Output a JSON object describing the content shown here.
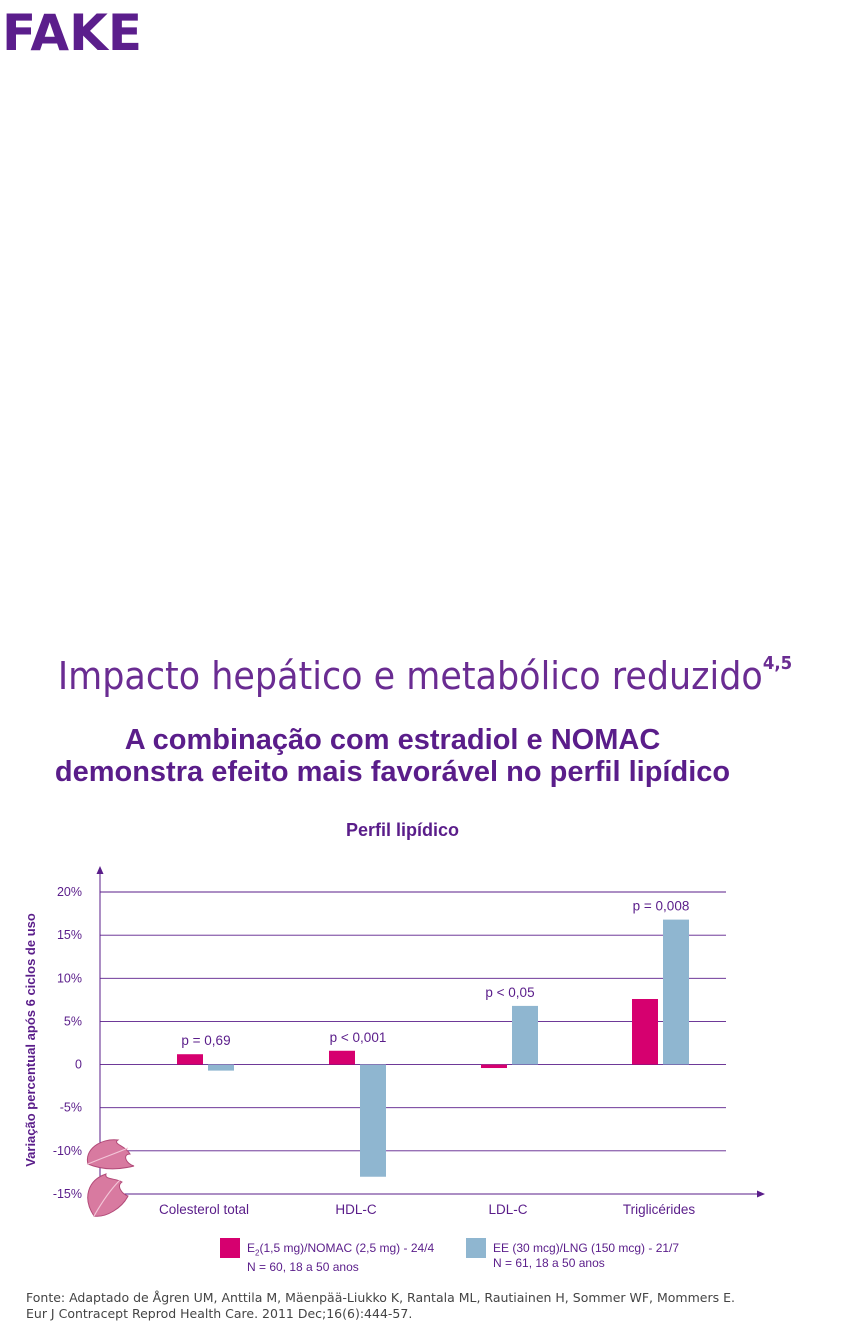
{
  "brand": {
    "logo_text": "FAKE"
  },
  "headline": {
    "text": "Impacto hepático e metabólico reduzido",
    "superscript": "4,5"
  },
  "subhead": {
    "line1": "A combinação com estradiol e NOMAC",
    "line2": "demonstra efeito mais favorável no perfil lipídico"
  },
  "colors": {
    "purple": "#5a1d8a",
    "series1": "#d6006f",
    "series2": "#8fb6d0",
    "grid": "#5a1d8a"
  },
  "chart_data": {
    "type": "bar",
    "title": "Perfil lipídico",
    "ylabel": "Variação percentual após 6 ciclos de uso",
    "xlabel": "",
    "ylim": [
      -15,
      20
    ],
    "yticks": [
      20,
      15,
      10,
      5,
      0,
      -5,
      -10,
      -15
    ],
    "ytick_labels": [
      "20%",
      "15%",
      "10%",
      "5%",
      "0",
      "-5%",
      "-10%",
      "-15%"
    ],
    "categories": [
      "Colesterol total",
      "HDL-C",
      "LDL-C",
      "Triglicérides"
    ],
    "series": [
      {
        "values": [
          1.2,
          1.6,
          -0.4,
          7.6
        ]
      },
      {
        "values": [
          -0.7,
          -13.0,
          6.8,
          16.8
        ]
      }
    ],
    "annotations": [
      "p = 0,69",
      "p < 0,001",
      "p < 0,05",
      "p = 0,008"
    ],
    "grid": true
  },
  "legend": [
    {
      "label_prefix": "E",
      "label_sub": "2",
      "label_rest": "(1,5 mg)/NOMAC (2,5 mg) - 24/4",
      "detail": "N = 60, 18 a 50 anos"
    },
    {
      "label": "EE (30 mcg)/LNG (150 mcg) - 21/7",
      "detail": "N = 61, 18 a 50 anos"
    }
  ],
  "source": {
    "line1": "Fonte: Adaptado de Ågren UM, Anttila M, Mäenpää-Liukko K, Rantala ML, Rautiainen H, Sommer WF, Mommers E.",
    "line2": "Eur J Contracept Reprod Health Care. 2011 Dec;16(6):444-57."
  }
}
